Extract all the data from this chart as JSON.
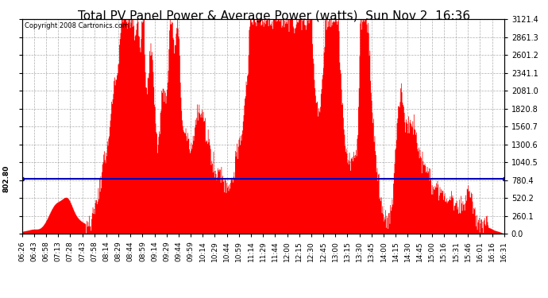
{
  "title": "Total PV Panel Power & Average Power (watts)  Sun Nov 2  16:36",
  "copyright": "Copyright 2008 Cartronics.com",
  "avg_power": 802.8,
  "y_max": 3121.4,
  "y_min": 0.0,
  "y_ticks": [
    0.0,
    260.1,
    520.2,
    780.4,
    1040.5,
    1300.6,
    1560.7,
    1820.8,
    2081.0,
    2341.1,
    2601.2,
    2861.3,
    3121.4
  ],
  "fill_color": "#FF0000",
  "avg_line_color": "#0000BB",
  "bg_color": "#FFFFFF",
  "plot_bg_color": "#FFFFFF",
  "grid_color": "#999999",
  "title_fontsize": 11,
  "tick_label_fontsize": 7,
  "x_tick_labels": [
    "06:26",
    "06:43",
    "06:58",
    "07:13",
    "07:28",
    "07:43",
    "07:58",
    "08:14",
    "08:29",
    "08:44",
    "08:59",
    "09:14",
    "09:29",
    "09:44",
    "09:59",
    "10:14",
    "10:29",
    "10:44",
    "10:59",
    "11:14",
    "11:29",
    "11:44",
    "12:00",
    "12:15",
    "12:30",
    "12:45",
    "13:00",
    "13:15",
    "13:30",
    "13:45",
    "14:00",
    "14:15",
    "14:30",
    "14:45",
    "15:00",
    "15:16",
    "15:31",
    "15:46",
    "16:01",
    "16:16",
    "16:31"
  ]
}
